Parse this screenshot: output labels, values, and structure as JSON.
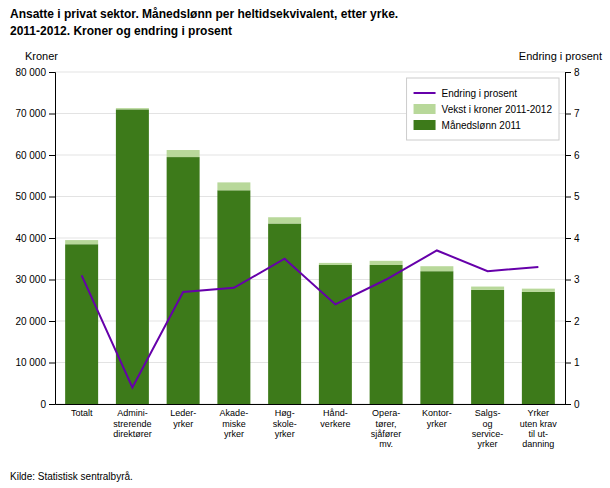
{
  "chart_data": {
    "type": "bar",
    "title": "Ansatte i privat sektor. Månedslønn per heltidsekvivalent, etter yrke.",
    "subtitle": "2011-2012. Kroner og endring i prosent",
    "categories": [
      "Totalt",
      "Admini-\nstrerende\ndirektører",
      "Leder-\nyrker",
      "Akade-\nmiske\nyrker",
      "Høg-\nskole-\nyrker",
      "Hånd-\nverkere",
      "Opera-\ntører,\nsjåfører\nmv.",
      "Kontor-\nyrker",
      "Salgs-\nog\nservice-\nyrker",
      "Yrker\nuten krav\ntil ut-\ndanning"
    ],
    "series": [
      {
        "name": "Månedslønn 2011",
        "type": "bar",
        "color": "#3d7a1a",
        "values": [
          38500,
          71000,
          59500,
          51500,
          43500,
          33500,
          33500,
          32000,
          27500,
          27000
        ]
      },
      {
        "name": "Vekst i kroner 2011-2012",
        "type": "bar",
        "color": "#b8d89a",
        "values": [
          1000,
          300,
          1700,
          1900,
          1500,
          500,
          1000,
          1200,
          800,
          800
        ]
      },
      {
        "name": "Endring i prosent",
        "type": "line",
        "axis": "y2",
        "color": "#6600aa",
        "values": [
          3.1,
          0.4,
          2.7,
          2.8,
          3.5,
          2.4,
          3.0,
          3.7,
          3.2,
          3.3
        ]
      }
    ],
    "stacked": true,
    "ylabel": "Kroner",
    "y2label": "Endring i prosent",
    "ylim": [
      0,
      80000
    ],
    "yticks": [
      0,
      {
        "value": 10000,
        "label": "10 000"
      },
      {
        "value": 20000,
        "label": "20 000"
      },
      {
        "value": 30000,
        "label": "30 000"
      },
      {
        "value": 40000,
        "label": "40 000"
      },
      {
        "value": 50000,
        "label": "50 000"
      },
      {
        "value": 60000,
        "label": "60 000"
      },
      {
        "value": 70000,
        "label": "70 000"
      },
      {
        "value": 80000,
        "label": "80 000"
      }
    ],
    "y2lim": [
      0,
      8
    ],
    "y2ticks": [
      0,
      1,
      2,
      3,
      4,
      5,
      6,
      7,
      8
    ],
    "grid": true,
    "legend": "upper right",
    "source": "Kilde: Statistisk sentralbyrå."
  }
}
